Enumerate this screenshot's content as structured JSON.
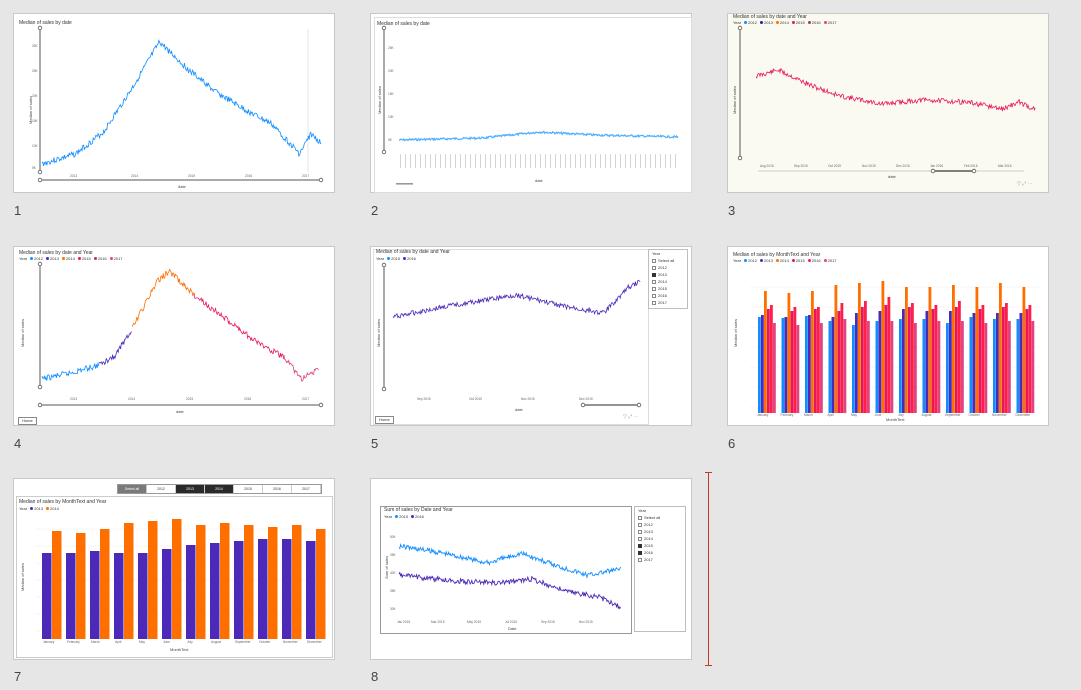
{
  "slides": [
    {
      "number": "1",
      "title": "Median of sales by date",
      "xlabel": "date",
      "ylabel": "Median of sales",
      "xticks": [
        "2013",
        "2014",
        "2015",
        "2016",
        "2017"
      ],
      "yticks": [
        "30K",
        "25K",
        "20K",
        "15K",
        "10K",
        "5K"
      ]
    },
    {
      "number": "2",
      "title": "Median of sales by date",
      "xlabel": "date",
      "ylabel": "Median of sales",
      "yticks": [
        "25K",
        "20K",
        "15K",
        "10K",
        "5K"
      ]
    },
    {
      "number": "3",
      "title": "Median of sales by date and Year",
      "legend_label": "Year",
      "legend": [
        "2012",
        "2013",
        "2014",
        "2015",
        "2016",
        "2017"
      ],
      "xlabel": "date",
      "ylabel": "Median of sales",
      "xticks": [
        "Aug 2015",
        "Sep 2015",
        "Oct 2015",
        "Nov 2015",
        "Dec 2015",
        "Jan 2016",
        "Feb 2016",
        "Mar 2016"
      ]
    },
    {
      "number": "4",
      "title": "Median of sales by date and Year",
      "legend_label": "Year",
      "legend": [
        "2012",
        "2013",
        "2014",
        "2015",
        "2016",
        "2017"
      ],
      "xlabel": "date",
      "ylabel": "Median of sales",
      "xticks": [
        "2013",
        "2014",
        "2015",
        "2016",
        "2017"
      ],
      "button": "Home"
    },
    {
      "number": "5",
      "title": "Median of sales by date and Year",
      "legend_label": "Year",
      "legend": [
        "2015",
        "2016"
      ],
      "xlabel": "date",
      "ylabel": "Median of sales",
      "xticks": [
        "Sep 2015",
        "Oct 2015",
        "Nov 2015",
        "Dec 2015"
      ],
      "button": "Home",
      "slicer": {
        "title": "Year",
        "items": [
          {
            "label": "Select all",
            "on": false
          },
          {
            "label": "2012",
            "on": false
          },
          {
            "label": "2013",
            "on": true
          },
          {
            "label": "2014",
            "on": false
          },
          {
            "label": "2015",
            "on": false
          },
          {
            "label": "2016",
            "on": false
          },
          {
            "label": "2017",
            "on": false
          }
        ]
      }
    },
    {
      "number": "6",
      "title": "Median of sales by MonthText and Year",
      "legend_label": "Year",
      "legend": [
        "2012",
        "2013",
        "2014",
        "2015",
        "2016",
        "2017"
      ],
      "xlabel": "MonthText",
      "ylabel": "Median of sales",
      "months": [
        "January",
        "February",
        "March",
        "April",
        "May",
        "June",
        "July",
        "August",
        "September",
        "October",
        "November",
        "December"
      ]
    },
    {
      "number": "7",
      "title": "Median of sales by MonthText and Year",
      "legend_label": "Year",
      "legend": [
        "2013",
        "2014"
      ],
      "xlabel": "MonthText",
      "ylabel": "Median of sales",
      "months": [
        "January",
        "February",
        "March",
        "April",
        "May",
        "June",
        "July",
        "August",
        "September",
        "October",
        "November",
        "December"
      ],
      "hslicer": [
        {
          "label": "Select all",
          "state": "sel"
        },
        {
          "label": "2012",
          "state": ""
        },
        {
          "label": "2013",
          "state": "on"
        },
        {
          "label": "2014",
          "state": "on"
        },
        {
          "label": "2015",
          "state": ""
        },
        {
          "label": "2016",
          "state": ""
        },
        {
          "label": "2017",
          "state": ""
        }
      ]
    },
    {
      "number": "8",
      "title": "Sum of sales by Date and Year",
      "legend_label": "Year",
      "legend": [
        "2015",
        "2016"
      ],
      "xlabel": "Date",
      "ylabel": "Sum of sales",
      "xticks": [
        "Jan 2015",
        "Mar 2015",
        "May 2015",
        "Jul 2015",
        "Sep 2015",
        "Nov 2015"
      ],
      "yticks": [
        "50K",
        "45K",
        "40K",
        "35K",
        "30K"
      ],
      "slicer": {
        "title": "Year",
        "items": [
          {
            "label": "Select all",
            "on": false
          },
          {
            "label": "2012",
            "on": false
          },
          {
            "label": "2013",
            "on": false
          },
          {
            "label": "2014",
            "on": false
          },
          {
            "label": "2015",
            "on": true
          },
          {
            "label": "2016",
            "on": true
          },
          {
            "label": "2017",
            "on": false
          }
        ]
      }
    }
  ],
  "colors": {
    "blue": "#118dff",
    "darkblue": "#12239e",
    "purple": "#4c2ab7",
    "orange": "#ff6f00",
    "crimson": "#e8175d",
    "pink": "#e04480",
    "magenta": "#a83279",
    "red": "#ff1d4a",
    "lightblue": "#4fb0ff"
  }
}
